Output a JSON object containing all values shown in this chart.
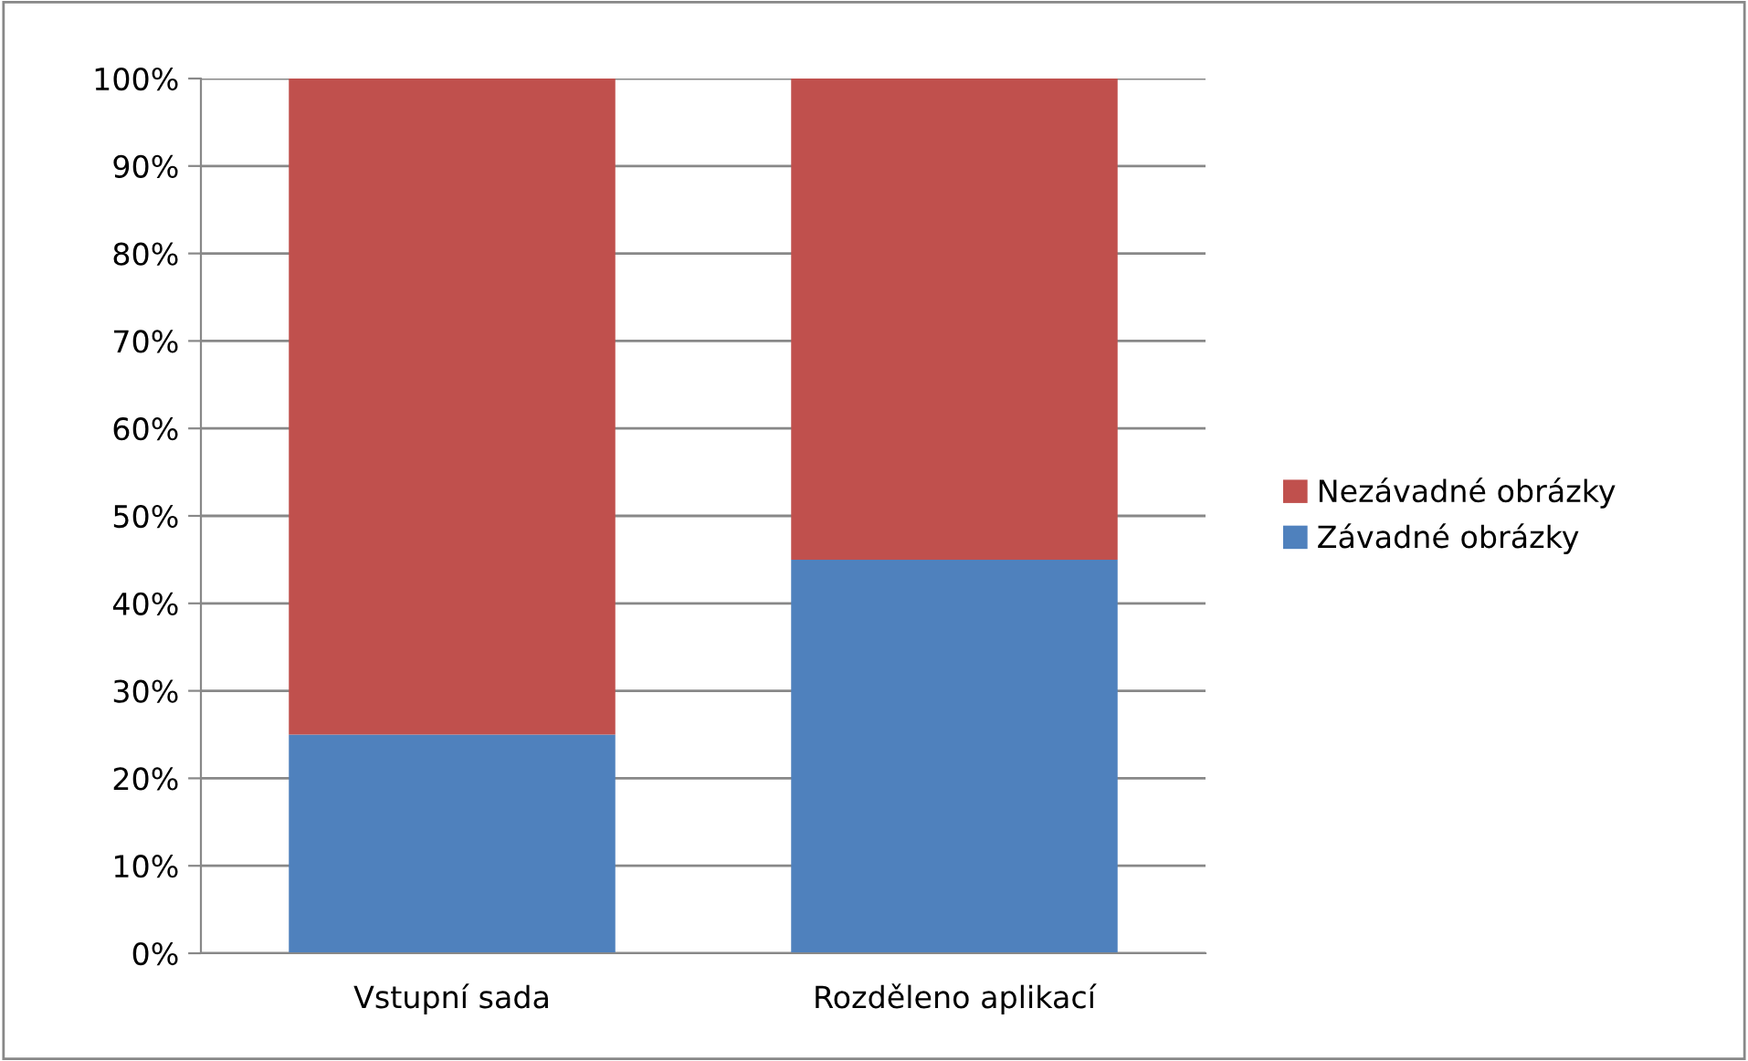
{
  "chart_data": {
    "type": "bar",
    "stacked": true,
    "categories": [
      "Vstupní sada",
      "Rozděleno aplikací"
    ],
    "series": [
      {
        "name": "Závadné obrázky",
        "color": "#4f81bd",
        "values": [
          25,
          45
        ]
      },
      {
        "name": "Nezávadné obrázky",
        "color": "#c0504d",
        "values": [
          75,
          55
        ]
      }
    ],
    "ylim": [
      0,
      100
    ],
    "yticks": [
      {
        "value": 0,
        "label": "0%"
      },
      {
        "value": 10,
        "label": "10%"
      },
      {
        "value": 20,
        "label": "20%"
      },
      {
        "value": 30,
        "label": "30%"
      },
      {
        "value": 40,
        "label": "40%"
      },
      {
        "value": 50,
        "label": "50%"
      },
      {
        "value": 60,
        "label": "60%"
      },
      {
        "value": 70,
        "label": "70%"
      },
      {
        "value": 80,
        "label": "80%"
      },
      {
        "value": 90,
        "label": "90%"
      },
      {
        "value": 100,
        "label": "100%"
      }
    ],
    "grid": "y",
    "legend": "right"
  }
}
